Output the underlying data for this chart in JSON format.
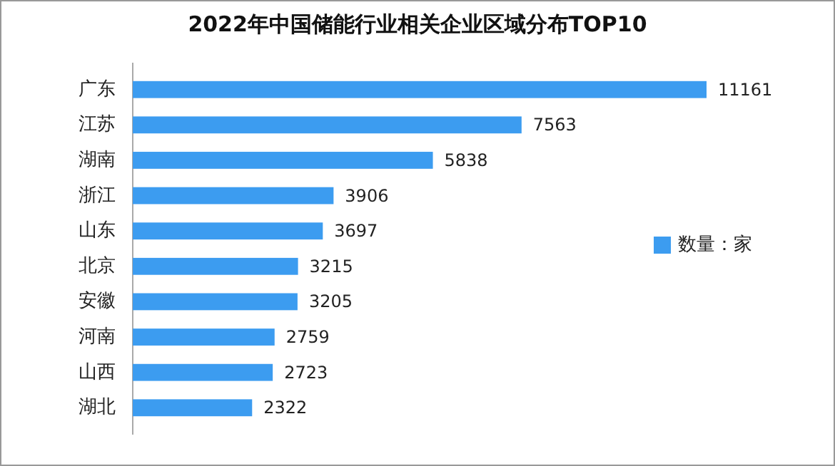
{
  "chart_data": {
    "type": "bar",
    "orientation": "horizontal",
    "title": "2022年中国储能行业相关企业区域分布TOP10",
    "categories": [
      "广东",
      "江苏",
      "湖南",
      "浙江",
      "山东",
      "北京",
      "安徽",
      "河南",
      "山西",
      "湖北"
    ],
    "series": [
      {
        "name": "数量：家",
        "color": "#3c9cf0",
        "values": [
          11161,
          7563,
          5838,
          3906,
          3697,
          3215,
          3205,
          2759,
          2723,
          2322
        ]
      }
    ],
    "data_labels": true,
    "legend": "right"
  }
}
